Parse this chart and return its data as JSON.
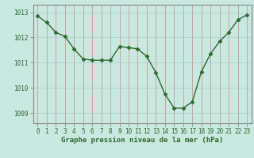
{
  "x": [
    0,
    1,
    2,
    3,
    4,
    5,
    6,
    7,
    8,
    9,
    10,
    11,
    12,
    13,
    14,
    15,
    16,
    17,
    18,
    19,
    20,
    21,
    22,
    23
  ],
  "y": [
    1012.85,
    1012.6,
    1012.2,
    1012.05,
    1011.55,
    1011.15,
    1011.1,
    1011.1,
    1011.1,
    1011.65,
    1011.6,
    1011.55,
    1011.25,
    1010.6,
    1009.75,
    1009.2,
    1009.2,
    1009.45,
    1010.65,
    1011.35,
    1011.85,
    1012.2,
    1012.7,
    1012.9
  ],
  "line_color": "#2d6a2d",
  "marker": "D",
  "markersize": 2.5,
  "linewidth": 1.0,
  "background_color": "#c8e8e0",
  "grid_color_v": "#cc8888",
  "grid_color_h": "#aacccc",
  "ylabel_ticks": [
    1009,
    1010,
    1011,
    1012,
    1013
  ],
  "xlabel_ticks": [
    0,
    1,
    2,
    3,
    4,
    5,
    6,
    7,
    8,
    9,
    10,
    11,
    12,
    13,
    14,
    15,
    16,
    17,
    18,
    19,
    20,
    21,
    22,
    23
  ],
  "ylim": [
    1008.6,
    1013.3
  ],
  "xlim": [
    -0.5,
    23.5
  ],
  "xlabel": "Graphe pression niveau de la mer (hPa)",
  "xlabel_fontsize": 6.5,
  "tick_fontsize": 5.5,
  "tick_color": "#2d6a2d",
  "label_color": "#2d6a2d",
  "spine_color": "#888888"
}
